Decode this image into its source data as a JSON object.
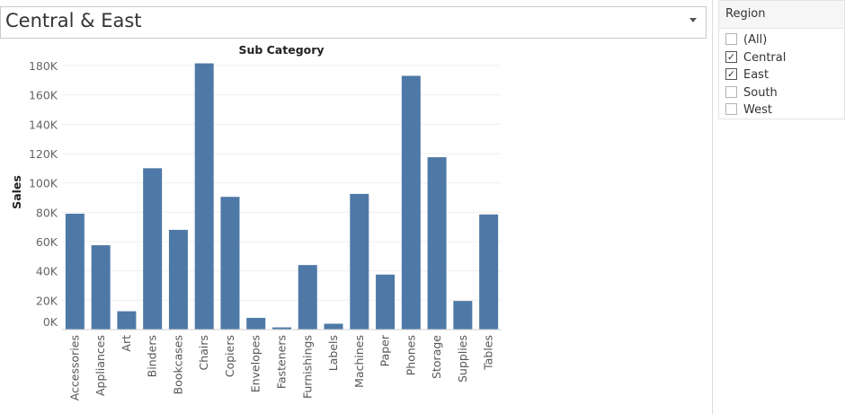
{
  "header": {
    "title": "Central & East"
  },
  "filter": {
    "title": "Region",
    "items": [
      {
        "label": "(All)",
        "checked": false
      },
      {
        "label": "Central",
        "checked": true
      },
      {
        "label": "East",
        "checked": true
      },
      {
        "label": "South",
        "checked": false
      },
      {
        "label": "West",
        "checked": false
      }
    ]
  },
  "chart_data": {
    "type": "bar",
    "title": "Sub Category",
    "xlabel": "",
    "ylabel": "Sales",
    "ylim": [
      0,
      190000
    ],
    "yticks": [
      0,
      20000,
      40000,
      60000,
      80000,
      100000,
      120000,
      140000,
      160000,
      180000
    ],
    "ytick_labels": [
      "0K",
      "20K",
      "40K",
      "60K",
      "80K",
      "100K",
      "120K",
      "140K",
      "160K",
      "180K"
    ],
    "grid": true,
    "bar_color": "#4e79a7",
    "categories": [
      "Accessories",
      "Appliances",
      "Art",
      "Binders",
      "Bookcases",
      "Chairs",
      "Copiers",
      "Envelopes",
      "Fasteners",
      "Furnishings",
      "Labels",
      "Machines",
      "Paper",
      "Phones",
      "Storage",
      "Supplies",
      "Tables"
    ],
    "values": [
      79000,
      57500,
      12500,
      110000,
      68000,
      181500,
      90500,
      8000,
      1500,
      44000,
      4000,
      92500,
      37500,
      173000,
      117500,
      19500,
      78500
    ]
  }
}
